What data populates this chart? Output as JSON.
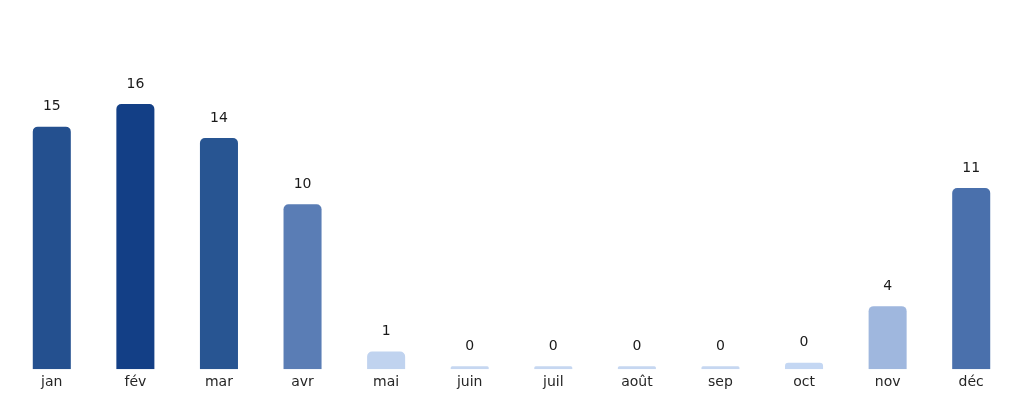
{
  "chart_data": {
    "type": "bar",
    "categories": [
      "jan",
      "fév",
      "mar",
      "avr",
      "mai",
      "juin",
      "juil",
      "août",
      "sep",
      "oct",
      "nov",
      "déc"
    ],
    "values": [
      15.0,
      16.4,
      14.3,
      10.2,
      1.1,
      0,
      0,
      0,
      0,
      0.4,
      3.9,
      11.2
    ],
    "colors": [
      "#24508f",
      "#133f86",
      "#285592",
      "#5a7db5",
      "#c0d3ef",
      "#c6d7f1",
      "#c6d7f1",
      "#c6d7f1",
      "#c6d7f1",
      "#c4d7f3",
      "#9fb7de",
      "#4a70ac"
    ],
    "value_labels": [
      "15",
      "16",
      "14",
      "10",
      "1",
      "0",
      "0",
      "0",
      "0",
      "0",
      "4",
      "11"
    ]
  }
}
